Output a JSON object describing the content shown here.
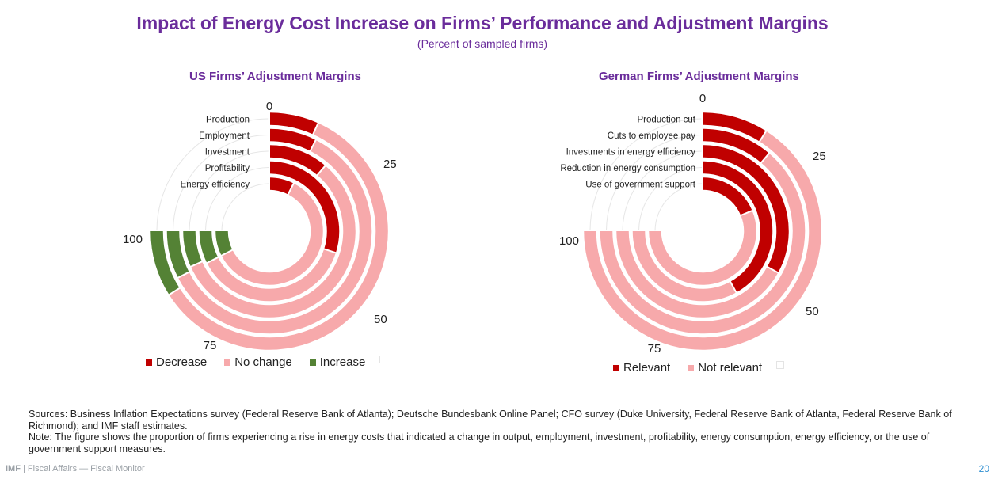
{
  "header": {
    "title": "Impact of Energy Cost Increase on Firms’ Performance and Adjustment Margins",
    "subtitle": "(Percent of sampled firms)"
  },
  "colors": {
    "title": "#6a2c9b",
    "decrease": "#c00000",
    "no_change": "#f7a9ab",
    "increase": "#548235",
    "relevant": "#c00000",
    "not_relevant": "#f7a9ab",
    "gridline": "#e6e6e6",
    "page_number": "#2f8fd1"
  },
  "chart_data": [
    {
      "type": "radial_bar",
      "title": "US Firms’ Adjustment Margins",
      "axis_ticks": [
        "0",
        "25",
        "50",
        "75",
        "100"
      ],
      "categories": [
        "Production",
        "Employment",
        "Investment",
        "Profitability",
        "Energy efficiency"
      ],
      "series": [
        {
          "name": "Decrease",
          "values": [
            9,
            10,
            15,
            40,
            10
          ]
        },
        {
          "name": "No change",
          "values": [
            79,
            80,
            76,
            50,
            80
          ]
        },
        {
          "name": "Increase",
          "values": [
            12,
            10,
            9,
            10,
            10
          ]
        }
      ],
      "legend": [
        "Decrease",
        "No change",
        "Increase"
      ],
      "legend_position": "bottom"
    },
    {
      "type": "radial_bar",
      "title": "German Firms’ Adjustment Margins",
      "axis_ticks": [
        "0",
        "25",
        "50",
        "75",
        "100"
      ],
      "categories": [
        "Production cut",
        "Cuts to employee pay",
        "Investments in energy efficiency",
        "Reduction in energy consumption",
        "Use of government support"
      ],
      "series": [
        {
          "name": "Relevant",
          "values": [
            12,
            15,
            44,
            56,
            25
          ]
        },
        {
          "name": "Not relevant",
          "values": [
            88,
            85,
            56,
            44,
            75
          ]
        }
      ],
      "legend": [
        "Relevant",
        "Not relevant"
      ],
      "legend_position": "bottom"
    }
  ],
  "notes": {
    "sources": "Sources: Business Inflation Expectations survey (Federal Reserve Bank of Atlanta); Deutsche Bundesbank Online Panel; CFO survey (Duke University, Federal Reserve Bank of Atlanta, Federal Reserve Bank of Richmond); and IMF staff estimates.",
    "note": "Note: The figure shows the proportion of firms experiencing a rise in energy costs that indicated a change in output, employment, investment, profitability, energy consumption, energy efficiency, or the use of government support measures."
  },
  "footer": {
    "brand": "IMF",
    "text": " | Fiscal Affairs — Fiscal Monitor",
    "page": "20"
  }
}
